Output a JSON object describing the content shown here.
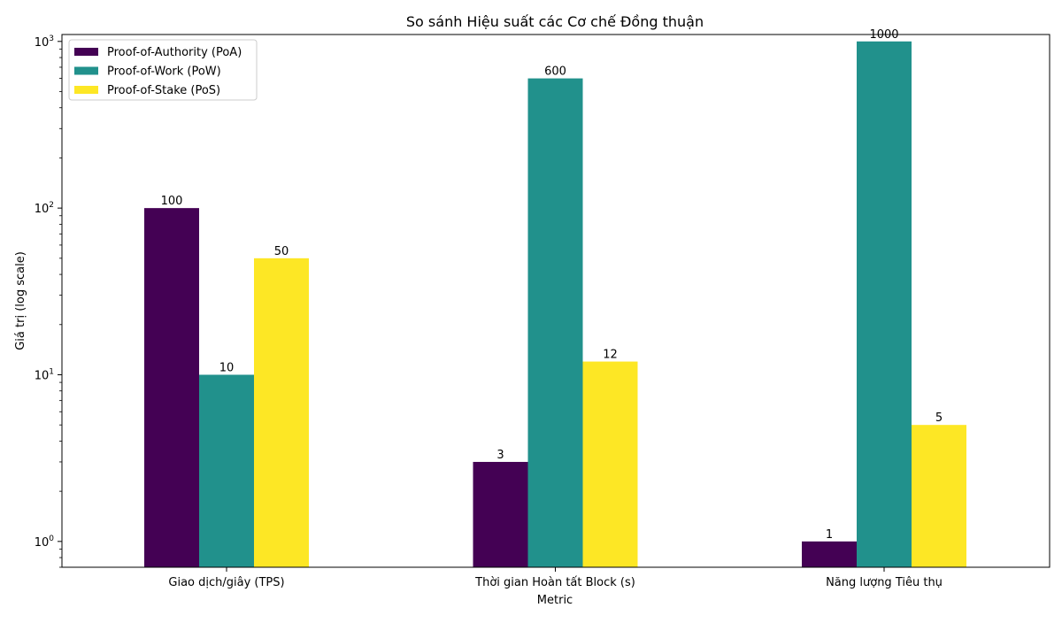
{
  "chart_data": {
    "type": "bar",
    "title": "So sánh Hiệu suất các Cơ chế Đồng thuận",
    "xlabel": "Metric",
    "ylabel": "Giá trị (log scale)",
    "yscale": "log",
    "ylim": [
      0.7,
      1100
    ],
    "grid": false,
    "legend_position": "top-left",
    "categories": [
      "Giao dịch/giây (TPS)",
      "Thời gian Hoàn tất Block (s)",
      "Năng lượng Tiêu thụ"
    ],
    "series": [
      {
        "name": "Proof-of-Authority (PoA)",
        "color": "#440154",
        "values": [
          100,
          3,
          1
        ]
      },
      {
        "name": "Proof-of-Work (PoW)",
        "color": "#21918c",
        "values": [
          10,
          600,
          1000
        ]
      },
      {
        "name": "Proof-of-Stake (PoS)",
        "color": "#fde725",
        "values": [
          50,
          12,
          5
        ]
      }
    ],
    "y_ticks": [
      {
        "base": "10",
        "exp": "0",
        "value": 1
      },
      {
        "base": "10",
        "exp": "1",
        "value": 10
      },
      {
        "base": "10",
        "exp": "2",
        "value": 100
      },
      {
        "base": "10",
        "exp": "3",
        "value": 1000
      }
    ]
  }
}
